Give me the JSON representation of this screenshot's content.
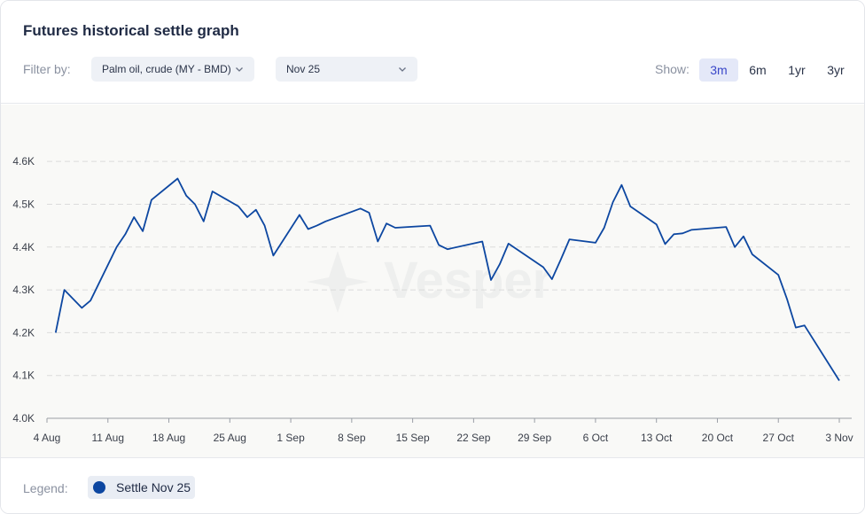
{
  "header": {
    "title": "Futures historical settle graph",
    "filter_label": "Filter by:",
    "product_select": "Palm oil, crude (MY - BMD)",
    "contract_select": "Nov 25",
    "show_label": "Show:",
    "ranges": [
      "3m",
      "6m",
      "1yr",
      "3yr"
    ],
    "active_range": "3m"
  },
  "watermark": "Vesper",
  "footer": {
    "legend_label": "Legend:",
    "legend_item": "Settle Nov 25"
  },
  "colors": {
    "line": "#0d47a1",
    "accent": "#3a47c9"
  },
  "chart_data": {
    "type": "line",
    "ylim": [
      4000,
      4650
    ],
    "yticks": [
      4000,
      4100,
      4200,
      4300,
      4400,
      4500,
      4600
    ],
    "ytick_labels": [
      "4.0K",
      "4.1K",
      "4.2K",
      "4.3K",
      "4.4K",
      "4.5K",
      "4.6K"
    ],
    "xticks": [
      "2025-08-04",
      "2025-08-11",
      "2025-08-18",
      "2025-08-25",
      "2025-09-01",
      "2025-09-08",
      "2025-09-15",
      "2025-09-22",
      "2025-09-29",
      "2025-10-06",
      "2025-10-13",
      "2025-10-20",
      "2025-10-27",
      "2025-11-03"
    ],
    "xtick_labels": [
      "4 Aug",
      "11 Aug",
      "18 Aug",
      "25 Aug",
      "1 Sep",
      "8 Sep",
      "15 Sep",
      "22 Sep",
      "29 Sep",
      "6 Oct",
      "13 Oct",
      "20 Oct",
      "27 Oct",
      "3 Nov"
    ],
    "grid": true,
    "series": [
      {
        "name": "Settle Nov 25",
        "x": [
          "2025-08-05",
          "2025-08-06",
          "2025-08-08",
          "2025-08-09",
          "2025-08-12",
          "2025-08-13",
          "2025-08-14",
          "2025-08-15",
          "2025-08-16",
          "2025-08-19",
          "2025-08-20",
          "2025-08-21",
          "2025-08-22",
          "2025-08-23",
          "2025-08-26",
          "2025-08-27",
          "2025-08-28",
          "2025-08-29",
          "2025-08-30",
          "2025-09-02",
          "2025-09-03",
          "2025-09-04",
          "2025-09-05",
          "2025-09-09",
          "2025-09-10",
          "2025-09-11",
          "2025-09-12",
          "2025-09-13",
          "2025-09-17",
          "2025-09-18",
          "2025-09-19",
          "2025-09-23",
          "2025-09-24",
          "2025-09-25",
          "2025-09-26",
          "2025-09-30",
          "2025-10-01",
          "2025-10-02",
          "2025-10-03",
          "2025-10-06",
          "2025-10-07",
          "2025-10-08",
          "2025-10-09",
          "2025-10-10",
          "2025-10-13",
          "2025-10-14",
          "2025-10-15",
          "2025-10-16",
          "2025-10-17",
          "2025-10-21",
          "2025-10-22",
          "2025-10-23",
          "2025-10-24",
          "2025-10-27",
          "2025-10-28",
          "2025-10-29",
          "2025-10-30",
          "2025-11-03"
        ],
        "values": [
          4200,
          4300,
          4258,
          4275,
          4400,
          4430,
          4470,
          4437,
          4510,
          4560,
          4520,
          4500,
          4460,
          4530,
          4495,
          4470,
          4487,
          4450,
          4380,
          4475,
          4442,
          4450,
          4460,
          4490,
          4480,
          4413,
          4455,
          4445,
          4450,
          4405,
          4395,
          4413,
          4323,
          4360,
          4408,
          4353,
          4325,
          4370,
          4418,
          4410,
          4445,
          4505,
          4545,
          4495,
          4453,
          4407,
          4430,
          4432,
          4440,
          4447,
          4400,
          4425,
          4383,
          4335,
          4278,
          4212,
          4217,
          4088
        ]
      }
    ]
  }
}
